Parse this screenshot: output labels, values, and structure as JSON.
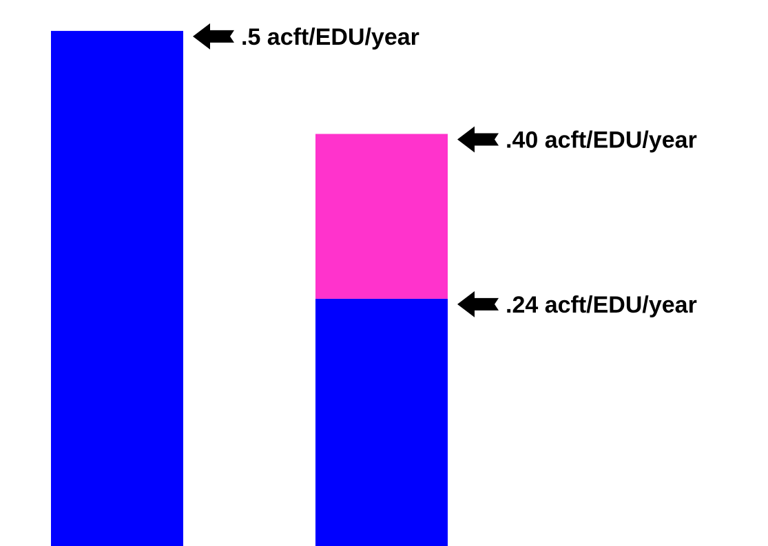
{
  "chart_data": {
    "type": "bar",
    "stacked": true,
    "categories": [
      "",
      ""
    ],
    "series": [
      {
        "values": [
          0.5,
          0.24
        ],
        "color": "#0000FF"
      },
      {
        "values": [
          0,
          0.16
        ],
        "color": "#FF33CC"
      }
    ],
    "ylim": [
      0,
      0.53
    ],
    "grid": false,
    "axes_visible": false,
    "annotations": [
      {
        "text": ".5 acft/EDU/year",
        "category_index": 0,
        "value": 0.5,
        "icon": "left-arrow-icon"
      },
      {
        "text": ".40 acft/EDU/year",
        "category_index": 1,
        "value": 0.4,
        "icon": "left-arrow-icon"
      },
      {
        "text": ".24 acft/EDU/year",
        "category_index": 1,
        "value": 0.24,
        "icon": "left-arrow-icon"
      }
    ]
  }
}
